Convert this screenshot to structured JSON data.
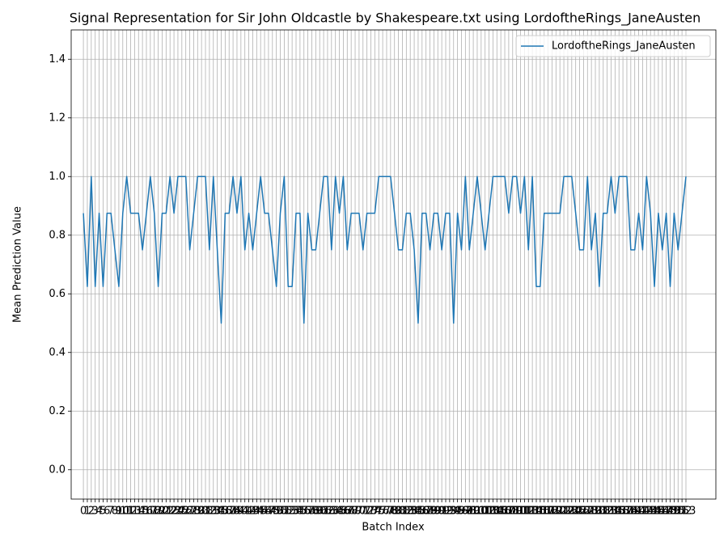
{
  "chart_data": {
    "type": "line",
    "title": "Signal Representation for Sir John Oldcastle by Shakespeare.txt using LordoftheRings_JaneAusten",
    "xlabel": "Batch Index",
    "ylabel": "Mean Prediction Value",
    "x": [
      0,
      1,
      2,
      3,
      4,
      5,
      6,
      7,
      8,
      9,
      10,
      11,
      12,
      13,
      14,
      15,
      16,
      17,
      18,
      19,
      20,
      21,
      22,
      23,
      24,
      25,
      26,
      27,
      28,
      29,
      30,
      31,
      32,
      33,
      34,
      35,
      36,
      37,
      38,
      39,
      40,
      41,
      42,
      43,
      44,
      45,
      46,
      47,
      48,
      49,
      50,
      51,
      52,
      53,
      54,
      55,
      56,
      57,
      58,
      59,
      60,
      61,
      62,
      63,
      64,
      65,
      66,
      67,
      68,
      69,
      70,
      71,
      72,
      73,
      74,
      75,
      76,
      77,
      78,
      79,
      80,
      81,
      82,
      83,
      84,
      85,
      86,
      87,
      88,
      89,
      90,
      91,
      92,
      93,
      94,
      95,
      96,
      97,
      98,
      99,
      100,
      101,
      102,
      103,
      104,
      105,
      106,
      107,
      108,
      109,
      110,
      111,
      112,
      113,
      114,
      115,
      116,
      117,
      118,
      119,
      120,
      121,
      122,
      123,
      124,
      125,
      126,
      127,
      128,
      129,
      130,
      131,
      132,
      133,
      134,
      135,
      136,
      137,
      138,
      139,
      140,
      141,
      142,
      143,
      144,
      145,
      146,
      147,
      148,
      149,
      150,
      151,
      152,
      153
    ],
    "series": [
      {
        "name": "LordoftheRings_JaneAusten",
        "color": "#1f77b4",
        "values": [
          0.875,
          0.625,
          1.0,
          0.625,
          0.875,
          0.625,
          0.875,
          0.875,
          0.75,
          0.625,
          0.875,
          1.0,
          0.875,
          0.875,
          0.875,
          0.75,
          0.875,
          1.0,
          0.875,
          0.625,
          0.875,
          0.875,
          1.0,
          0.875,
          1.0,
          1.0,
          1.0,
          0.75,
          0.875,
          1.0,
          1.0,
          1.0,
          0.75,
          1.0,
          0.75,
          0.5,
          0.875,
          0.875,
          1.0,
          0.875,
          1.0,
          0.75,
          0.875,
          0.75,
          0.875,
          1.0,
          0.875,
          0.875,
          0.75,
          0.625,
          0.875,
          1.0,
          0.625,
          0.625,
          0.875,
          0.875,
          0.5,
          0.875,
          0.75,
          0.75,
          0.875,
          1.0,
          1.0,
          0.75,
          1.0,
          0.875,
          1.0,
          0.75,
          0.875,
          0.875,
          0.875,
          0.75,
          0.875,
          0.875,
          0.875,
          1.0,
          1.0,
          1.0,
          1.0,
          0.875,
          0.75,
          0.75,
          0.875,
          0.875,
          0.75,
          0.5,
          0.875,
          0.875,
          0.75,
          0.875,
          0.875,
          0.75,
          0.875,
          0.875,
          0.5,
          0.875,
          0.75,
          1.0,
          0.75,
          0.875,
          1.0,
          0.875,
          0.75,
          0.875,
          1.0,
          1.0,
          1.0,
          1.0,
          0.875,
          1.0,
          1.0,
          0.875,
          1.0,
          0.75,
          1.0,
          0.625,
          0.625,
          0.875,
          0.875,
          0.875,
          0.875,
          0.875,
          1.0,
          1.0,
          1.0,
          0.875,
          0.75,
          0.75,
          1.0,
          0.75,
          0.875,
          0.625,
          0.875,
          0.875,
          1.0,
          0.875,
          1.0,
          1.0,
          1.0,
          0.75,
          0.75,
          0.875,
          0.75,
          1.0,
          0.875,
          0.625,
          0.875,
          0.75,
          0.875,
          0.625,
          0.875,
          0.75,
          0.875,
          1.0
        ]
      }
    ],
    "xlim": [
      -3.1,
      160.6
    ],
    "xticks": [
      0,
      1,
      2,
      3,
      4,
      5,
      6,
      7,
      8,
      9,
      10,
      11,
      12,
      13,
      14,
      15,
      16,
      17,
      18,
      19,
      20,
      21,
      22,
      23,
      24,
      25,
      26,
      27,
      28,
      29,
      30,
      31,
      32,
      33,
      34,
      35,
      36,
      37,
      38,
      39,
      40,
      41,
      42,
      43,
      44,
      45,
      46,
      47,
      48,
      49,
      50,
      51,
      52,
      53,
      54,
      55,
      56,
      57,
      58,
      59,
      60,
      61,
      62,
      63,
      64,
      65,
      66,
      67,
      68,
      69,
      70,
      71,
      72,
      73,
      74,
      75,
      76,
      77,
      78,
      79,
      80,
      81,
      82,
      83,
      84,
      85,
      86,
      87,
      88,
      89,
      90,
      91,
      92,
      93,
      94,
      95,
      96,
      97,
      98,
      99,
      100,
      101,
      102,
      103,
      104,
      105,
      106,
      107,
      108,
      109,
      110,
      111,
      112,
      113,
      114,
      115,
      116,
      117,
      118,
      119,
      120,
      121,
      122,
      123,
      124,
      125,
      126,
      127,
      128,
      129,
      130,
      131,
      132,
      133,
      134,
      135,
      136,
      137,
      138,
      139,
      140,
      141,
      142,
      143,
      144,
      145,
      146,
      147,
      148,
      149,
      150,
      151,
      152,
      153
    ],
    "ylim": [
      -0.1,
      1.5
    ],
    "yticks": [
      {
        "value": 0,
        "label": "0.0"
      },
      0.2,
      0.4,
      0.6,
      0.8,
      {
        "value": 1,
        "label": "1.0"
      },
      1.2,
      1.4
    ],
    "grid": true,
    "legend": "upper right"
  }
}
